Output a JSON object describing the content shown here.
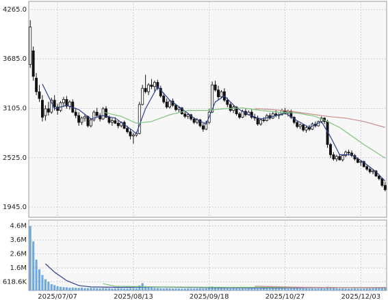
{
  "chart_data": [
    {
      "type": "candlestick",
      "xlim": [
        -0.5,
        117.5
      ],
      "ylim": [
        1825,
        4361
      ],
      "grid": true,
      "yticks": [
        {
          "value": 1945,
          "label": "1945.0"
        },
        {
          "value": 2525,
          "label": "2525.0"
        },
        {
          "value": 3105,
          "label": "3105.0"
        },
        {
          "value": 3685,
          "label": "3685.0"
        },
        {
          "value": 4265,
          "label": "4265.0"
        }
      ],
      "up_color": "#ffffff",
      "down_color": "#111111",
      "open": [
        3620,
        3780,
        3460,
        3300,
        3200,
        3020,
        3100,
        3060,
        3200,
        3120,
        3080,
        3170,
        3210,
        3130,
        3180,
        3060,
        3020,
        2940,
        2990,
        3010,
        2900,
        2970,
        3060,
        3020,
        2980,
        3100,
        3000,
        2940,
        2960,
        2930,
        2900,
        2940,
        2870,
        2830,
        2780,
        2790,
        2810,
        3150,
        3340,
        3300,
        3380,
        3360,
        3410,
        3340,
        3250,
        3180,
        3120,
        3190,
        3140,
        3090,
        3110,
        3040,
        3010,
        3030,
        2980,
        2940,
        2970,
        2900,
        2860,
        2940,
        3060,
        3380,
        3320,
        3240,
        3300,
        3200,
        3150,
        3080,
        3120,
        3040,
        3000,
        3070,
        3030,
        3060,
        3000,
        2990,
        2920,
        2970,
        2960,
        3020,
        2990,
        3040,
        3020,
        3030,
        3080,
        3050,
        3070,
        3000,
        2940,
        2890,
        2910,
        2850,
        2880,
        2860,
        2920,
        2900,
        2950,
        2990,
        2950,
        2680,
        2560,
        2510,
        2540,
        2500,
        2550,
        2590,
        2580,
        2550,
        2510,
        2470,
        2480,
        2420,
        2390,
        2360,
        2370,
        2310,
        2280,
        2200
      ],
      "high": [
        4140,
        3830,
        3520,
        3380,
        3260,
        3140,
        3180,
        3230,
        3260,
        3160,
        3190,
        3240,
        3250,
        3200,
        3210,
        3110,
        3060,
        3010,
        3040,
        3020,
        2990,
        3080,
        3110,
        3050,
        3120,
        3130,
        3020,
        2990,
        3000,
        2960,
        2950,
        2960,
        2900,
        2860,
        2820,
        2830,
        3180,
        3380,
        3500,
        3400,
        3450,
        3430,
        3440,
        3370,
        3290,
        3220,
        3200,
        3220,
        3160,
        3130,
        3120,
        3070,
        3050,
        3040,
        3000,
        2990,
        2980,
        2930,
        2960,
        3100,
        3420,
        3430,
        3370,
        3320,
        3340,
        3230,
        3170,
        3140,
        3130,
        3060,
        3090,
        3100,
        3080,
        3090,
        3040,
        3020,
        2990,
        3000,
        3040,
        3050,
        3060,
        3080,
        3050,
        3100,
        3110,
        3090,
        3090,
        3010,
        2960,
        2930,
        2920,
        2900,
        2910,
        2940,
        2950,
        2960,
        3010,
        3000,
        2970,
        2700,
        2590,
        2560,
        2570,
        2560,
        2610,
        2620,
        2610,
        2570,
        2530,
        2500,
        2490,
        2440,
        2410,
        2390,
        2380,
        2330,
        2290,
        2240
      ],
      "low": [
        3580,
        3430,
        3260,
        3180,
        2950,
        2960,
        3020,
        3040,
        3080,
        3030,
        3060,
        3120,
        3100,
        3090,
        3050,
        2990,
        2900,
        2910,
        2950,
        2880,
        2880,
        2950,
        3000,
        2950,
        2970,
        2990,
        2920,
        2900,
        2920,
        2870,
        2880,
        2860,
        2810,
        2740,
        2690,
        2770,
        2800,
        3140,
        3280,
        3260,
        3330,
        3300,
        3320,
        3230,
        3160,
        3100,
        3100,
        3120,
        3070,
        3060,
        3030,
        2990,
        2980,
        2960,
        2920,
        2920,
        2880,
        2830,
        2850,
        2920,
        3050,
        3300,
        3200,
        3220,
        3180,
        3120,
        3060,
        3050,
        3020,
        2980,
        2990,
        3010,
        3020,
        2980,
        2960,
        2900,
        2900,
        2940,
        2950,
        2970,
        2980,
        3000,
        2980,
        3020,
        3030,
        3010,
        2980,
        2920,
        2870,
        2860,
        2830,
        2820,
        2840,
        2850,
        2880,
        2890,
        2930,
        2920,
        2640,
        2520,
        2490,
        2480,
        2490,
        2480,
        2530,
        2550,
        2530,
        2490,
        2460,
        2430,
        2410,
        2370,
        2340,
        2330,
        2300,
        2260,
        2180,
        2130
      ],
      "close": [
        4060,
        3480,
        3300,
        3220,
        3000,
        3100,
        3060,
        3200,
        3120,
        3080,
        3170,
        3210,
        3130,
        3180,
        3060,
        3020,
        2940,
        2990,
        3010,
        2900,
        2970,
        3060,
        3020,
        2980,
        3100,
        3000,
        2940,
        2960,
        2930,
        2900,
        2940,
        2870,
        2830,
        2780,
        2790,
        2810,
        3150,
        3340,
        3300,
        3380,
        3360,
        3410,
        3340,
        3250,
        3180,
        3120,
        3190,
        3140,
        3090,
        3110,
        3040,
        3010,
        3030,
        2980,
        2940,
        2970,
        2900,
        2860,
        2940,
        3060,
        3380,
        3320,
        3240,
        3300,
        3200,
        3150,
        3080,
        3120,
        3040,
        3000,
        3070,
        3030,
        3060,
        3000,
        2990,
        2920,
        2970,
        2960,
        3020,
        2990,
        3040,
        3020,
        3030,
        3080,
        3050,
        3070,
        3000,
        2940,
        2890,
        2910,
        2850,
        2880,
        2860,
        2920,
        2900,
        2950,
        2990,
        2950,
        2680,
        2560,
        2510,
        2540,
        2500,
        2550,
        2590,
        2580,
        2550,
        2510,
        2470,
        2480,
        2420,
        2390,
        2360,
        2370,
        2310,
        2280,
        2200,
        2150
      ],
      "series": [
        {
          "color": "#2a3f8f",
          "x": [
            4,
            8,
            12,
            16,
            20,
            24,
            28,
            32,
            35,
            38,
            42,
            46,
            50,
            54,
            58,
            61,
            64,
            68,
            72,
            76,
            80,
            84,
            88,
            92,
            96,
            99,
            102,
            106,
            110,
            114,
            117
          ],
          "values": [
            3390,
            3100,
            3140,
            3090,
            2980,
            3020,
            2990,
            2890,
            2810,
            3100,
            3360,
            3200,
            3100,
            2990,
            2920,
            3180,
            3250,
            3110,
            3030,
            2980,
            3010,
            3050,
            2960,
            2880,
            2950,
            2770,
            2560,
            2560,
            2470,
            2360,
            2250
          ]
        },
        {
          "color": "#7cc47c",
          "x": [
            24,
            30,
            35,
            40,
            46,
            52,
            58,
            64,
            70,
            76,
            82,
            88,
            94,
            98,
            102,
            106,
            110,
            114,
            117
          ],
          "values": [
            3060,
            3010,
            2930,
            2950,
            3030,
            3080,
            3080,
            3100,
            3110,
            3080,
            3060,
            3050,
            3010,
            2950,
            2880,
            2780,
            2680,
            2590,
            2520
          ]
        },
        {
          "color": "#c98b8b",
          "x": [
            74,
            80,
            86,
            92,
            98,
            104,
            110,
            117
          ],
          "values": [
            3100,
            3090,
            3070,
            3040,
            3010,
            2990,
            2950,
            2880
          ]
        }
      ]
    },
    {
      "type": "bar",
      "xlim": [
        -0.5,
        117.5
      ],
      "ylim": [
        0,
        5020000
      ],
      "color": "#6fa8dc",
      "grid": true,
      "yticks": [
        {
          "value": 618600,
          "label": "618.6K"
        },
        {
          "value": 1600000,
          "label": "1.6M"
        },
        {
          "value": 2600000,
          "label": "2.6M"
        },
        {
          "value": 3600000,
          "label": "3.6M"
        },
        {
          "value": 4600000,
          "label": "4.6M"
        }
      ],
      "xticks": [
        {
          "value": 9,
          "label": "2025/07/07"
        },
        {
          "value": 34,
          "label": "2025/08/13"
        },
        {
          "value": 59,
          "label": "2025/09/18"
        },
        {
          "value": 84,
          "label": "2025/10/27"
        },
        {
          "value": 109,
          "label": "2025/12/03"
        }
      ],
      "values": [
        4600000,
        3500000,
        2200000,
        1500000,
        1100000,
        800000,
        620000,
        450000,
        380000,
        300000,
        260000,
        240000,
        220000,
        200000,
        210000,
        190000,
        180000,
        200000,
        170000,
        160000,
        180000,
        170000,
        160000,
        150000,
        170000,
        160000,
        150000,
        140000,
        150000,
        160000,
        150000,
        140000,
        150000,
        170000,
        180000,
        160000,
        350000,
        520000,
        300000,
        220000,
        200000,
        180000,
        170000,
        160000,
        150000,
        160000,
        150000,
        140000,
        150000,
        140000,
        130000,
        140000,
        150000,
        140000,
        130000,
        140000,
        150000,
        140000,
        150000,
        200000,
        280000,
        220000,
        180000,
        170000,
        160000,
        150000,
        140000,
        150000,
        140000,
        130000,
        140000,
        130000,
        140000,
        150000,
        140000,
        130000,
        140000,
        150000,
        140000,
        130000,
        140000,
        150000,
        140000,
        150000,
        140000,
        130000,
        140000,
        150000,
        160000,
        140000,
        150000,
        140000,
        130000,
        140000,
        130000,
        140000,
        150000,
        140000,
        260000,
        200000,
        170000,
        150000,
        140000,
        150000,
        140000,
        130000,
        140000,
        150000,
        140000,
        130000,
        140000,
        150000,
        140000,
        150000,
        160000,
        170000,
        180000,
        240000
      ],
      "series": [
        {
          "color": "#2a3f8f",
          "x": [
            5,
            8,
            12,
            16,
            20,
            30,
            40,
            60,
            80,
            100,
            117
          ],
          "values": [
            1900000,
            1300000,
            700000,
            350000,
            250000,
            220000,
            250000,
            200000,
            180000,
            200000,
            190000
          ]
        },
        {
          "color": "#7cc47c",
          "x": [
            24,
            28,
            40,
            60,
            117
          ],
          "values": [
            480000,
            300000,
            260000,
            230000,
            210000
          ]
        },
        {
          "color": "#c98b8b",
          "x": [
            74,
            90,
            117
          ],
          "values": [
            300000,
            220000,
            200000
          ]
        }
      ]
    }
  ]
}
